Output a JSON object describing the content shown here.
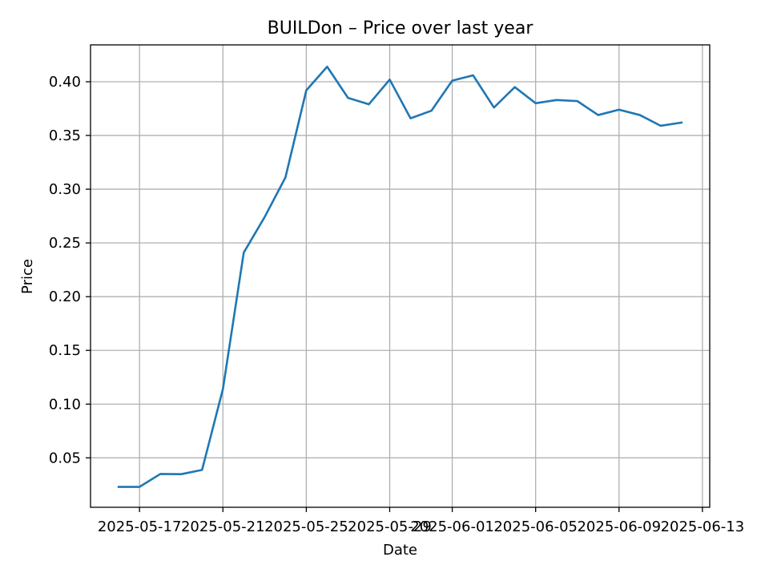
{
  "chart_data": {
    "type": "line",
    "title": "BUILDon – Price over last year",
    "xlabel": "Date",
    "ylabel": "Price",
    "grid": true,
    "x_tick_labels": [
      "2025-05-17",
      "2025-05-21",
      "2025-05-25",
      "2025-05-29",
      "2025-06-01",
      "2025-06-05",
      "2025-06-09",
      "2025-06-13"
    ],
    "x_tick_days": [
      1,
      5,
      9,
      13,
      16,
      20,
      24,
      28
    ],
    "xlim_days": [
      -1.35,
      28.35
    ],
    "y_ticks": [
      0.05,
      0.1,
      0.15,
      0.2,
      0.25,
      0.3,
      0.35,
      0.4
    ],
    "y_tick_labels": [
      "0.05",
      "0.10",
      "0.15",
      "0.20",
      "0.25",
      "0.30",
      "0.35",
      "0.40"
    ],
    "ylim": [
      0.004,
      0.4343
    ],
    "series": [
      {
        "name": "Price",
        "color": "#1f77b4",
        "x_days": [
          0,
          1,
          2,
          3,
          4,
          5,
          6,
          7,
          8,
          9,
          10,
          11,
          12,
          13,
          14,
          15,
          16,
          17,
          18,
          19,
          20,
          21,
          22,
          23,
          24,
          25,
          26,
          27
        ],
        "values": [
          0.023,
          0.023,
          0.035,
          0.0348,
          0.0388,
          0.114,
          0.241,
          0.274,
          0.311,
          0.392,
          0.414,
          0.385,
          0.379,
          0.402,
          0.366,
          0.373,
          0.401,
          0.406,
          0.376,
          0.395,
          0.38,
          0.383,
          0.382,
          0.369,
          0.374,
          0.369,
          0.359,
          0.362
        ]
      }
    ]
  }
}
